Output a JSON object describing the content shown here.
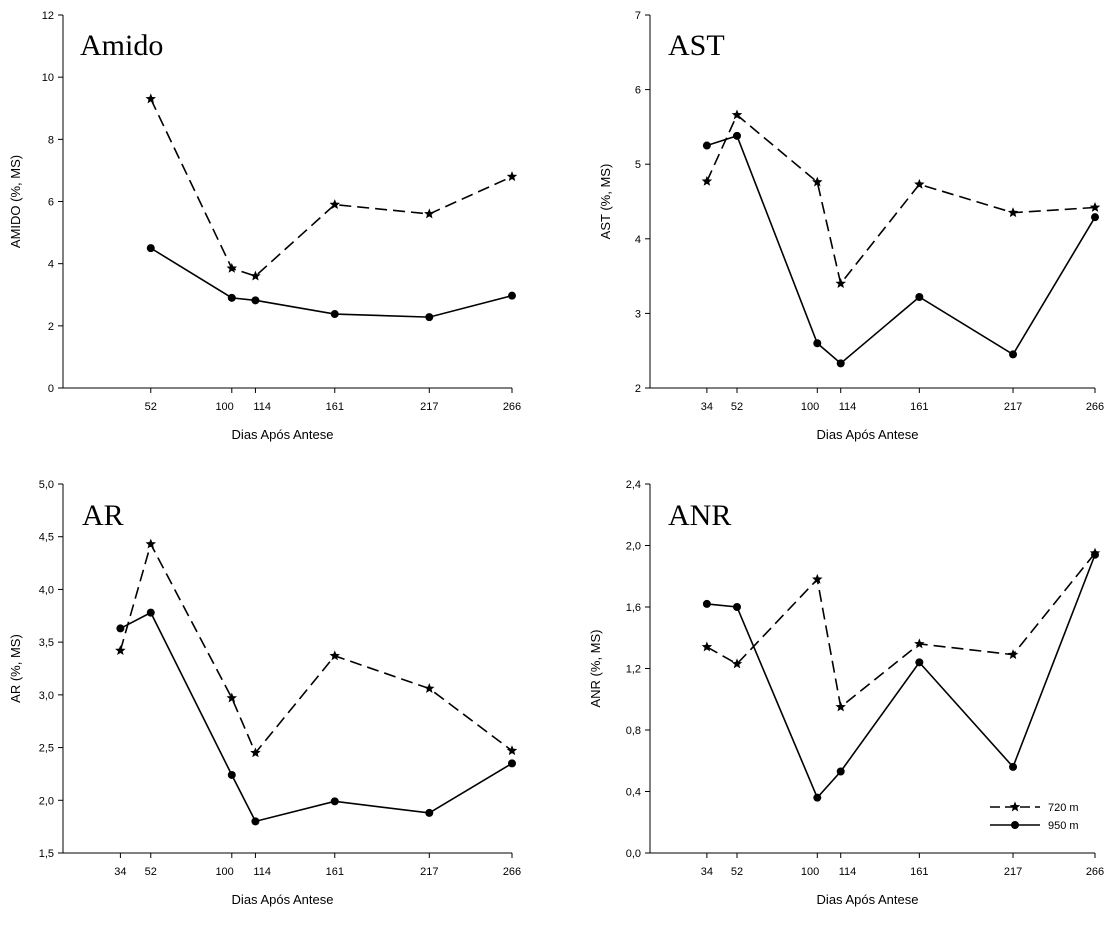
{
  "chart_data": [
    {
      "type": "line",
      "title": "Amido",
      "xlabel": "Dias Após Antese",
      "ylabel": "AMIDO (%, MS)",
      "x_ticks": [
        52,
        100,
        114,
        161,
        217,
        266
      ],
      "x_tick_labels": [
        "52",
        "100",
        "114",
        "161",
        "217",
        "266"
      ],
      "xlim": [
        0,
        266
      ],
      "ylim": [
        0,
        12
      ],
      "y_ticks": [
        0,
        2,
        4,
        6,
        8,
        10,
        12
      ],
      "y_tick_labels": [
        "0",
        "2",
        "4",
        "6",
        "8",
        "10",
        "12"
      ],
      "grid": false,
      "series": [
        {
          "name": "720 m",
          "style": "dashed",
          "marker": "star",
          "x": [
            52,
            100,
            114,
            161,
            217,
            266
          ],
          "y": [
            9.3,
            3.85,
            3.6,
            5.9,
            5.6,
            6.8
          ]
        },
        {
          "name": "950 m",
          "style": "solid",
          "marker": "circle",
          "x": [
            52,
            100,
            114,
            161,
            217,
            266
          ],
          "y": [
            4.5,
            2.9,
            2.82,
            2.38,
            2.28,
            2.97
          ]
        }
      ]
    },
    {
      "type": "line",
      "title": "AST",
      "xlabel": "Dias Após Antese",
      "ylabel": "AST (%, MS)",
      "x_ticks": [
        34,
        52,
        100,
        114,
        161,
        217,
        266
      ],
      "x_tick_labels": [
        "34",
        "52",
        "100",
        "114",
        "161",
        "217",
        "266"
      ],
      "xlim": [
        0,
        266
      ],
      "ylim": [
        2,
        7
      ],
      "y_ticks": [
        2,
        3,
        4,
        5,
        6,
        7
      ],
      "y_tick_labels": [
        "2",
        "3",
        "4",
        "5",
        "6",
        "7"
      ],
      "grid": false,
      "series": [
        {
          "name": "720 m",
          "style": "dashed",
          "marker": "star",
          "x": [
            34,
            52,
            100,
            114,
            161,
            217,
            266
          ],
          "y": [
            4.77,
            5.66,
            4.76,
            3.4,
            4.73,
            4.35,
            4.42
          ]
        },
        {
          "name": "950 m",
          "style": "solid",
          "marker": "circle",
          "x": [
            34,
            52,
            100,
            114,
            161,
            217,
            266
          ],
          "y": [
            5.25,
            5.38,
            2.6,
            2.33,
            3.22,
            2.45,
            4.29
          ]
        }
      ]
    },
    {
      "type": "line",
      "title": "AR",
      "xlabel": "Dias Após Antese",
      "ylabel": "AR (%, MS)",
      "x_ticks": [
        34,
        52,
        100,
        114,
        161,
        217,
        266
      ],
      "x_tick_labels": [
        "34",
        "52",
        "100",
        "114",
        "161",
        "217",
        "266"
      ],
      "xlim": [
        0,
        266
      ],
      "ylim": [
        1.5,
        5.0
      ],
      "y_ticks": [
        1.5,
        2.0,
        2.5,
        3.0,
        3.5,
        4.0,
        4.5,
        5.0
      ],
      "y_tick_labels": [
        "1,5",
        "2,0",
        "2,5",
        "3,0",
        "3,5",
        "4,0",
        "4,5",
        "5,0"
      ],
      "grid": false,
      "series": [
        {
          "name": "720 m",
          "style": "dashed",
          "marker": "star",
          "x": [
            34,
            52,
            100,
            114,
            161,
            217,
            266
          ],
          "y": [
            3.42,
            4.43,
            2.97,
            2.45,
            3.37,
            3.06,
            2.47
          ]
        },
        {
          "name": "950 m",
          "style": "solid",
          "marker": "circle",
          "x": [
            34,
            52,
            100,
            114,
            161,
            217,
            266
          ],
          "y": [
            3.63,
            3.78,
            2.24,
            1.8,
            1.99,
            1.88,
            2.35
          ]
        }
      ]
    },
    {
      "type": "line",
      "title": "ANR",
      "xlabel": "Dias Após Antese",
      "ylabel": "ANR (%, MS)",
      "x_ticks": [
        34,
        52,
        100,
        114,
        161,
        217,
        266
      ],
      "x_tick_labels": [
        "34",
        "52",
        "100",
        "114",
        "161",
        "217",
        "266"
      ],
      "xlim": [
        0,
        266
      ],
      "ylim": [
        0.0,
        2.4
      ],
      "y_ticks": [
        0.0,
        0.4,
        0.8,
        1.2,
        1.6,
        2.0,
        2.4
      ],
      "y_tick_labels": [
        "0,0",
        "0,4",
        "0,8",
        "1,2",
        "1,6",
        "2,0",
        "2,4"
      ],
      "grid": false,
      "legend_position": "bottom-right",
      "series": [
        {
          "name": "720 m",
          "style": "dashed",
          "marker": "star",
          "x": [
            34,
            52,
            100,
            114,
            161,
            217,
            266
          ],
          "y": [
            1.34,
            1.23,
            1.78,
            0.95,
            1.36,
            1.29,
            1.95
          ]
        },
        {
          "name": "950 m",
          "style": "solid",
          "marker": "circle",
          "x": [
            34,
            52,
            100,
            114,
            161,
            217,
            266
          ],
          "y": [
            1.62,
            1.6,
            0.36,
            0.53,
            1.24,
            0.56,
            1.94
          ]
        }
      ]
    }
  ]
}
